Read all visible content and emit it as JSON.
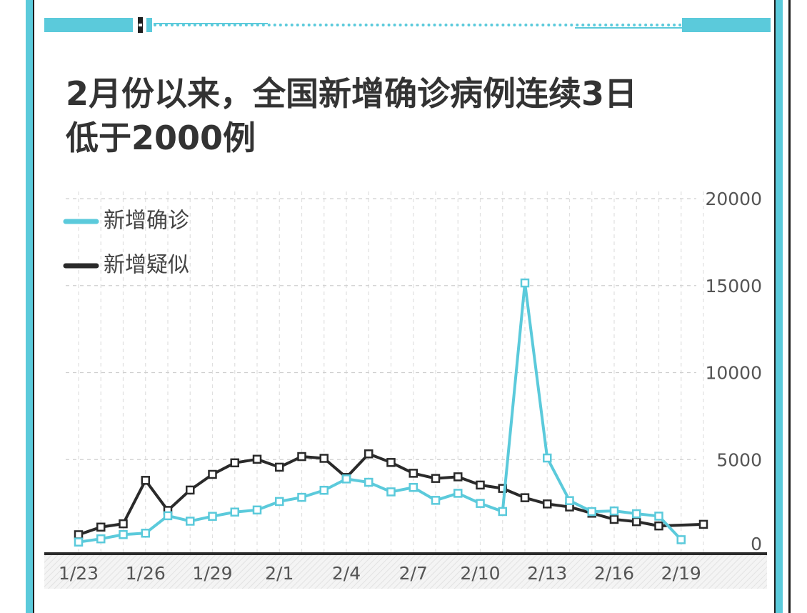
{
  "title_lines": [
    "2月份以来，全国新增确诊病例连续3日",
    "低于2000例"
  ],
  "colors": {
    "accent": "#5bcadb",
    "dark": "#2a2a2a"
  },
  "chart_data": {
    "type": "line",
    "x": [
      "1/23",
      "1/24",
      "1/25",
      "1/26",
      "1/27",
      "1/28",
      "1/29",
      "1/30",
      "1/31",
      "2/1",
      "2/2",
      "2/3",
      "2/4",
      "2/5",
      "2/6",
      "2/7",
      "2/8",
      "2/9",
      "2/10",
      "2/11",
      "2/12",
      "2/13",
      "2/14",
      "2/15",
      "2/16",
      "2/17",
      "2/18",
      "2/19",
      "2/20"
    ],
    "xtick_labels": [
      "1/23",
      "1/26",
      "1/29",
      "2/1",
      "2/4",
      "2/7",
      "2/10",
      "2/13",
      "2/16",
      "2/19"
    ],
    "ytick_labels": [
      "0",
      "5000",
      "10000",
      "15000",
      "20000"
    ],
    "ylim": [
      0,
      20000
    ],
    "legend_position": "top-left",
    "series": [
      {
        "name": "新增确诊",
        "color": "#5bcadb",
        "values": [
          259,
          444,
          688,
          769,
          1771,
          1459,
          1737,
          1982,
          2102,
          2590,
          2829,
          3235,
          3887,
          3694,
          3143,
          3399,
          2656,
          3062,
          2478,
          2015,
          15152,
          5090,
          2641,
          2009,
          2048,
          1886,
          1749,
          394,
          null
        ]
      },
      {
        "name": "新增疑似",
        "color": "#2a2a2a",
        "values": [
          680,
          1118,
          1309,
          3806,
          2077,
          3248,
          4148,
          4812,
          5019,
          4562,
          5173,
          5072,
          3971,
          5328,
          4833,
          4214,
          3916,
          4008,
          3536,
          3342,
          2807,
          2450,
          2277,
          1918,
          1563,
          1432,
          1185,
          null,
          1277
        ]
      }
    ]
  }
}
